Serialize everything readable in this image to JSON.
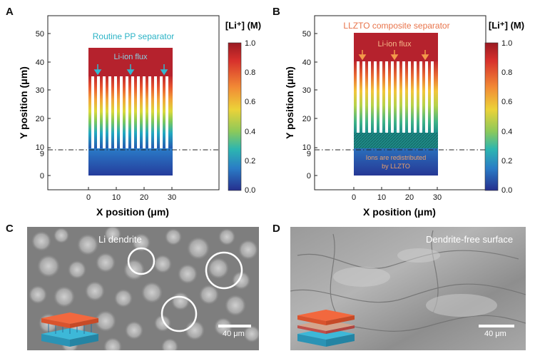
{
  "panels": {
    "a": {
      "letter": "A",
      "title": "Routine PP separator",
      "flux_label": "Li-ion flux",
      "y_axis_label": "Y position (μm)",
      "x_axis_label": "X position (μm)",
      "y_ticks": [
        "0",
        "9",
        "10",
        "20",
        "30",
        "40",
        "50"
      ],
      "x_ticks": [
        "0",
        "10",
        "20",
        "30"
      ],
      "colorbar_title": "[Li⁺] (M)",
      "colorbar_ticks": [
        "1.0",
        "0.8",
        "0.6",
        "0.4",
        "0.2",
        "0.0"
      ]
    },
    "b": {
      "letter": "B",
      "title": "LLZTO composite separator",
      "flux_label": "Li-ion flux",
      "annotation_line1": "Ions are redistributed",
      "annotation_line2": "by LLZTO",
      "y_axis_label": "Y position (μm)",
      "x_axis_label": "X position (μm)",
      "y_ticks": [
        "0",
        "9",
        "10",
        "20",
        "30",
        "40",
        "50"
      ],
      "x_ticks": [
        "0",
        "10",
        "20",
        "30"
      ],
      "colorbar_title": "[Li⁺] (M)",
      "colorbar_ticks": [
        "1.0",
        "0.8",
        "0.6",
        "0.4",
        "0.2",
        "0.0"
      ]
    },
    "c": {
      "letter": "C",
      "label": "Li dendrite",
      "scale": "40 μm"
    },
    "d": {
      "letter": "D",
      "label": "Dendrite-free surface",
      "scale": "40 μm"
    }
  },
  "colors": {
    "title_a": "#2bb3c6",
    "title_b": "#e8734a",
    "high": "#c21b2b",
    "low": "#23399a"
  }
}
